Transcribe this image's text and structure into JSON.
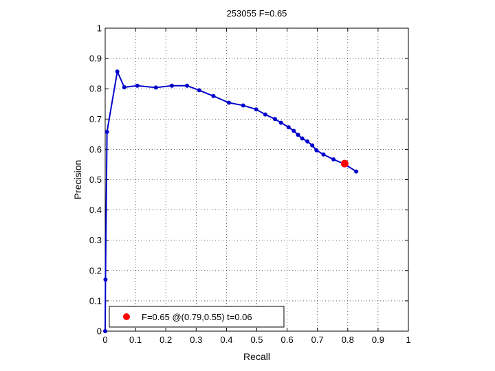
{
  "chart_data": {
    "type": "line",
    "title": "253055 F=0.65",
    "xlabel": "Recall",
    "ylabel": "Precision",
    "xlim": [
      0,
      1
    ],
    "ylim": [
      0,
      1
    ],
    "x_ticks": [
      "0",
      "0.1",
      "0.2",
      "0.3",
      "0.4",
      "0.5",
      "0.6",
      "0.7",
      "0.8",
      "0.9",
      "1"
    ],
    "y_ticks": [
      "0",
      "0.1",
      "0.2",
      "0.3",
      "0.4",
      "0.5",
      "0.6",
      "0.7",
      "0.8",
      "0.9",
      "1"
    ],
    "grid": true,
    "series": [
      {
        "color": "#0000cc",
        "points": [
          [
            0.0,
            0.0
          ],
          [
            0.001,
            0.17
          ],
          [
            0.006,
            0.658
          ],
          [
            0.04,
            0.857
          ],
          [
            0.063,
            0.805
          ],
          [
            0.106,
            0.81
          ],
          [
            0.167,
            0.804
          ],
          [
            0.22,
            0.81
          ],
          [
            0.27,
            0.81
          ],
          [
            0.31,
            0.795
          ],
          [
            0.357,
            0.776
          ],
          [
            0.408,
            0.754
          ],
          [
            0.455,
            0.745
          ],
          [
            0.498,
            0.732
          ],
          [
            0.528,
            0.715
          ],
          [
            0.56,
            0.7
          ],
          [
            0.58,
            0.688
          ],
          [
            0.605,
            0.673
          ],
          [
            0.622,
            0.661
          ],
          [
            0.636,
            0.648
          ],
          [
            0.65,
            0.636
          ],
          [
            0.667,
            0.626
          ],
          [
            0.683,
            0.613
          ],
          [
            0.697,
            0.597
          ],
          [
            0.72,
            0.583
          ],
          [
            0.753,
            0.567
          ],
          [
            0.79,
            0.551
          ],
          [
            0.828,
            0.527
          ]
        ]
      }
    ],
    "highlight": {
      "x": 0.79,
      "y": 0.553,
      "color": "#ff0000"
    },
    "legend": {
      "position": "bottom-left",
      "label": "F=0.65 @(0.79,0.55) t=0.06"
    }
  }
}
